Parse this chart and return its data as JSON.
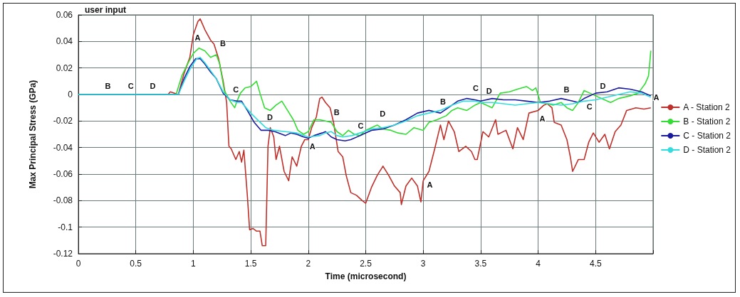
{
  "chart_data": {
    "type": "line",
    "title": "user input",
    "xlabel": "Time (microsecond)",
    "ylabel": "Max Principal Stress (GPa)",
    "xlim": [
      0,
      5
    ],
    "xticks": [
      0,
      0.5,
      1,
      1.5,
      2,
      2.5,
      3,
      3.5,
      4,
      4.5
    ],
    "ylim": [
      -0.12,
      0.06
    ],
    "yticks": [
      -0.12,
      -0.1,
      -0.08,
      -0.06,
      -0.04,
      -0.02,
      0,
      0.02,
      0.04,
      0.06
    ],
    "grid": true,
    "legend": "right",
    "marker": "none",
    "line_style": "solid",
    "series": [
      {
        "name": "A - Station 2",
        "color": "#c0302a",
        "x": [
          0,
          0.78,
          0.8,
          0.87,
          0.92,
          0.97,
          1.0,
          1.04,
          1.06,
          1.1,
          1.15,
          1.18,
          1.22,
          1.26,
          1.29,
          1.31,
          1.33,
          1.37,
          1.4,
          1.42,
          1.44,
          1.47,
          1.49,
          1.52,
          1.55,
          1.58,
          1.6,
          1.63,
          1.65,
          1.67,
          1.7,
          1.72,
          1.75,
          1.79,
          1.83,
          1.86,
          1.9,
          1.94,
          1.97,
          2.0,
          2.03,
          2.07,
          2.1,
          2.12,
          2.15,
          2.19,
          2.22,
          2.26,
          2.3,
          2.33,
          2.37,
          2.42,
          2.47,
          2.5,
          2.55,
          2.6,
          2.65,
          2.7,
          2.75,
          2.8,
          2.81,
          2.85,
          2.9,
          2.95,
          2.98,
          3.0,
          3.05,
          3.1,
          3.15,
          3.18,
          3.22,
          3.27,
          3.31,
          3.37,
          3.42,
          3.45,
          3.47,
          3.52,
          3.57,
          3.63,
          3.65,
          3.72,
          3.78,
          3.82,
          3.87,
          3.92,
          4.0,
          4.05,
          4.08,
          4.12,
          4.14,
          4.2,
          4.25,
          4.28,
          4.3,
          4.35,
          4.4,
          4.44,
          4.48,
          4.53,
          4.58,
          4.62,
          4.67,
          4.72,
          4.77,
          4.85,
          4.92,
          4.98
        ],
        "values": [
          0,
          0,
          0.002,
          0,
          0.016,
          0.028,
          0.045,
          0.055,
          0.057,
          0.049,
          0.041,
          0.038,
          0.027,
          0.01,
          -0.006,
          -0.039,
          -0.041,
          -0.049,
          -0.043,
          -0.051,
          -0.042,
          -0.076,
          -0.102,
          -0.101,
          -0.103,
          -0.103,
          -0.114,
          -0.114,
          -0.039,
          -0.025,
          -0.032,
          -0.049,
          -0.039,
          -0.058,
          -0.065,
          -0.047,
          -0.054,
          -0.039,
          -0.034,
          -0.034,
          -0.025,
          -0.017,
          -0.003,
          -0.002,
          -0.006,
          -0.01,
          -0.021,
          -0.043,
          -0.047,
          -0.061,
          -0.074,
          -0.076,
          -0.08,
          -0.082,
          -0.07,
          -0.061,
          -0.054,
          -0.061,
          -0.069,
          -0.074,
          -0.083,
          -0.069,
          -0.063,
          -0.069,
          -0.081,
          -0.065,
          -0.058,
          -0.041,
          -0.023,
          -0.034,
          -0.02,
          -0.028,
          -0.043,
          -0.039,
          -0.043,
          -0.049,
          -0.049,
          -0.028,
          -0.032,
          -0.019,
          -0.03,
          -0.027,
          -0.041,
          -0.025,
          -0.034,
          -0.014,
          -0.012,
          -0.008,
          -0.007,
          -0.01,
          -0.021,
          -0.023,
          -0.034,
          -0.047,
          -0.058,
          -0.049,
          -0.049,
          -0.036,
          -0.029,
          -0.036,
          -0.03,
          -0.041,
          -0.028,
          -0.023,
          -0.012,
          -0.01,
          -0.011,
          -0.01
        ]
      },
      {
        "name": "B - Station 2",
        "color": "#33dd33",
        "x": [
          0,
          0.85,
          0.9,
          0.95,
          1.0,
          1.05,
          1.1,
          1.15,
          1.2,
          1.23,
          1.27,
          1.32,
          1.36,
          1.38,
          1.41,
          1.45,
          1.5,
          1.55,
          1.58,
          1.62,
          1.67,
          1.72,
          1.77,
          1.82,
          1.87,
          1.91,
          1.96,
          2.0,
          2.05,
          2.1,
          2.15,
          2.2,
          2.25,
          2.3,
          2.35,
          2.4,
          2.45,
          2.5,
          2.6,
          2.65,
          2.72,
          2.78,
          2.85,
          2.92,
          3.0,
          3.05,
          3.12,
          3.2,
          3.25,
          3.3,
          3.38,
          3.45,
          3.5,
          3.6,
          3.67,
          3.75,
          3.82,
          3.9,
          3.95,
          3.98,
          4.02,
          4.08,
          4.13,
          4.2,
          4.25,
          4.3,
          4.35,
          4.4,
          4.45,
          4.5,
          4.55,
          4.63,
          4.7,
          4.8,
          4.87,
          4.93,
          4.96,
          4.97,
          4.98
        ],
        "values": [
          0,
          0,
          0.014,
          0.023,
          0.031,
          0.035,
          0.033,
          0.028,
          0.03,
          0.023,
          0.003,
          -0.005,
          -0.01,
          -0.005,
          0.001,
          0.005,
          0.006,
          0.01,
          0.001,
          -0.01,
          -0.012,
          -0.008,
          -0.005,
          -0.012,
          -0.019,
          -0.027,
          -0.03,
          -0.028,
          -0.019,
          -0.019,
          -0.02,
          -0.021,
          -0.028,
          -0.031,
          -0.027,
          -0.03,
          -0.031,
          -0.027,
          -0.023,
          -0.026,
          -0.027,
          -0.029,
          -0.03,
          -0.025,
          -0.027,
          -0.021,
          -0.019,
          -0.016,
          -0.012,
          -0.01,
          -0.012,
          -0.008,
          -0.006,
          -0.01,
          0.001,
          0.002,
          0.004,
          0.006,
          0.003,
          0.005,
          -0.006,
          -0.007,
          -0.008,
          -0.006,
          -0.01,
          -0.012,
          -0.006,
          0.003,
          0.001,
          -0.001,
          -0.003,
          -0.006,
          -0.003,
          -0.001,
          0.001,
          0.008,
          0.014,
          0.023,
          0.033
        ]
      },
      {
        "name": "C - Station 2",
        "color": "#1a1aa0",
        "x": [
          0,
          0.87,
          0.92,
          0.97,
          1.02,
          1.06,
          1.1,
          1.15,
          1.2,
          1.26,
          1.32,
          1.38,
          1.42,
          1.47,
          1.53,
          1.59,
          1.65,
          1.71,
          1.8,
          1.85,
          1.9,
          1.96,
          2.0,
          2.05,
          2.12,
          2.15,
          2.2,
          2.25,
          2.32,
          2.37,
          2.45,
          2.55,
          2.65,
          2.75,
          2.85,
          2.95,
          3.05,
          3.15,
          3.2,
          3.3,
          3.38,
          3.45,
          3.5,
          3.6,
          3.7,
          3.8,
          3.9,
          4.0,
          4.1,
          4.2,
          4.3,
          4.35,
          4.4,
          4.5,
          4.6,
          4.7,
          4.8,
          4.9,
          4.98
        ],
        "values": [
          0,
          0,
          0.012,
          0.021,
          0.027,
          0.027,
          0.023,
          0.017,
          0.012,
          0.001,
          -0.004,
          -0.005,
          -0.005,
          -0.012,
          -0.021,
          -0.027,
          -0.027,
          -0.028,
          -0.031,
          -0.029,
          -0.03,
          -0.032,
          -0.033,
          -0.031,
          -0.029,
          -0.028,
          -0.032,
          -0.034,
          -0.035,
          -0.034,
          -0.031,
          -0.027,
          -0.026,
          -0.023,
          -0.019,
          -0.014,
          -0.012,
          -0.014,
          -0.011,
          -0.005,
          -0.003,
          -0.004,
          -0.005,
          -0.003,
          -0.004,
          -0.004,
          -0.005,
          -0.006,
          -0.005,
          -0.003,
          -0.005,
          -0.006,
          -0.003,
          0.001,
          0.002,
          0.005,
          0.004,
          0.002,
          -0.001
        ]
      },
      {
        "name": "D - Station 2",
        "color": "#33dddd",
        "x": [
          0,
          0.87,
          0.92,
          0.97,
          1.03,
          1.06,
          1.1,
          1.15,
          1.2,
          1.26,
          1.32,
          1.38,
          1.42,
          1.5,
          1.57,
          1.63,
          1.7,
          1.8,
          1.9,
          2.0,
          2.1,
          2.15,
          2.2,
          2.25,
          2.3,
          2.38,
          2.45,
          2.55,
          2.65,
          2.75,
          2.85,
          2.95,
          3.05,
          3.15,
          3.25,
          3.35,
          3.45,
          3.5,
          3.6,
          3.7,
          3.8,
          3.9,
          4.0,
          4.1,
          4.2,
          4.3,
          4.4,
          4.5,
          4.6,
          4.7,
          4.8,
          4.9,
          4.98
        ],
        "values": [
          0,
          0,
          0.01,
          0.019,
          0.027,
          0.028,
          0.024,
          0.018,
          0.012,
          0.002,
          -0.004,
          -0.006,
          -0.006,
          -0.014,
          -0.02,
          -0.025,
          -0.027,
          -0.028,
          -0.029,
          -0.032,
          -0.031,
          -0.029,
          -0.028,
          -0.031,
          -0.032,
          -0.031,
          -0.029,
          -0.026,
          -0.025,
          -0.023,
          -0.02,
          -0.016,
          -0.014,
          -0.012,
          -0.008,
          -0.005,
          -0.005,
          -0.006,
          -0.006,
          -0.007,
          -0.008,
          -0.007,
          -0.006,
          -0.007,
          -0.008,
          -0.007,
          -0.005,
          -0.004,
          -0.002,
          0,
          0.002,
          0.001,
          -0.002
        ]
      }
    ],
    "annotations": [
      {
        "text": "A",
        "x": 1.0,
        "y": 0.036
      },
      {
        "text": "B",
        "x": 1.22,
        "y": 0.032
      },
      {
        "text": "B",
        "x": 0.22,
        "y": 0
      },
      {
        "text": "C",
        "x": 0.42,
        "y": 0
      },
      {
        "text": "D",
        "x": 0.61,
        "y": 0
      },
      {
        "text": "C",
        "x": 1.42,
        "y": -0.005
      },
      {
        "text": "D",
        "x": 1.63,
        "y": -0.024
      },
      {
        "text": "A",
        "x": 2.0,
        "y": -0.033
      },
      {
        "text": "B",
        "x": 2.21,
        "y": -0.02
      },
      {
        "text": "C",
        "x": 2.42,
        "y": -0.03
      },
      {
        "text": "D",
        "x": 2.61,
        "y": -0.021
      },
      {
        "text": "A",
        "x": 3.02,
        "y": -0.062
      },
      {
        "text": "B",
        "x": 3.21,
        "y": -0.012
      },
      {
        "text": "C",
        "x": 3.42,
        "y": -0.002
      },
      {
        "text": "D",
        "x": 3.61,
        "y": -0.004
      },
      {
        "text": "A",
        "x": 4.0,
        "y": -0.012
      },
      {
        "text": "B",
        "x": 4.21,
        "y": -0.003
      },
      {
        "text": "C",
        "x": 4.41,
        "y": -0.003
      },
      {
        "text": "D",
        "x": 4.6,
        "y": 0
      },
      {
        "text": "A",
        "x": 4.99,
        "y": -0.009
      }
    ]
  }
}
